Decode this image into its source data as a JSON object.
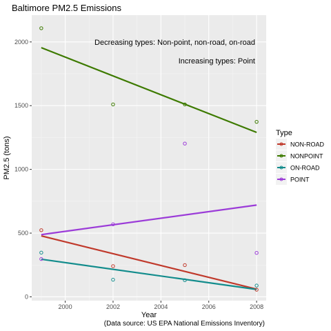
{
  "chart_data": {
    "type": "scatter",
    "title": "Baltimore PM2.5 Emissions",
    "xlabel": "Year",
    "ylabel": "PM2.5 (tons)",
    "caption": "(Data source: US EPA National Emissions Inventory)",
    "annotations": [
      "Decreasing types: Non-point, non-road, on-road",
      "Increasing types: Point"
    ],
    "legend_title": "Type",
    "legend_position": "right",
    "grid": true,
    "xlim": [
      1998.6,
      2008.4
    ],
    "ylim": [
      -30,
      2210
    ],
    "x_ticks": [
      2000,
      2002,
      2004,
      2006,
      2008
    ],
    "y_ticks": [
      0,
      500,
      1000,
      1500,
      2000
    ],
    "x_tick_labels": [
      "2000",
      "2002",
      "2004",
      "2006",
      "2008"
    ],
    "y_tick_labels": [
      "0",
      "500",
      "1000",
      "1500",
      "2000"
    ],
    "x": [
      1999,
      2002,
      2005,
      2008
    ],
    "series": [
      {
        "name": "NON-ROAD",
        "color": "#c0392b",
        "values": [
          522.9,
          240.8,
          248.9,
          55.8
        ],
        "trend": [
          478,
          60
        ]
      },
      {
        "name": "NONPOINT",
        "color": "#3d7a00",
        "values": [
          2107.6,
          1509.5,
          1509.5,
          1373.2
        ],
        "trend": [
          1955,
          1290
        ]
      },
      {
        "name": "ON-ROAD",
        "color": "#128c8c",
        "values": [
          346.8,
          134.3,
          130.4,
          88.3
        ],
        "trend": [
          295,
          58
        ]
      },
      {
        "name": "POINT",
        "color": "#9b3bd8",
        "values": [
          296.8,
          569.3,
          1202.5,
          344.98
        ],
        "trend": [
          488,
          720
        ]
      }
    ]
  }
}
